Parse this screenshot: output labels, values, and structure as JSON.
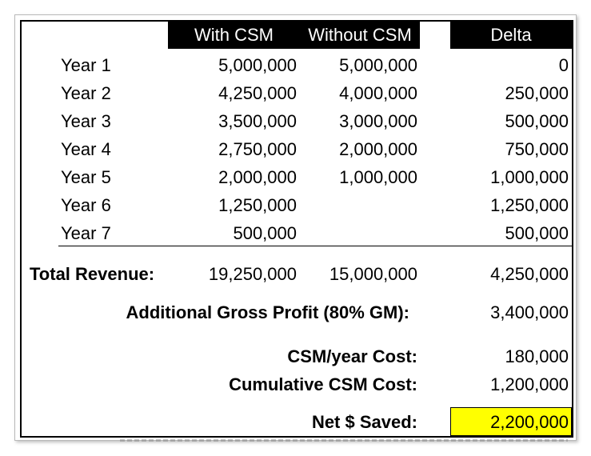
{
  "headers": {
    "with_csm": "With CSM",
    "without_csm": "Without CSM",
    "delta": "Delta"
  },
  "rows": [
    {
      "year": "Year 1",
      "with": "5,000,000",
      "without": "5,000,000",
      "delta": "0"
    },
    {
      "year": "Year 2",
      "with": "4,250,000",
      "without": "4,000,000",
      "delta": "250,000"
    },
    {
      "year": "Year 3",
      "with": "3,500,000",
      "without": "3,000,000",
      "delta": "500,000"
    },
    {
      "year": "Year 4",
      "with": "2,750,000",
      "without": "2,000,000",
      "delta": "750,000"
    },
    {
      "year": "Year 5",
      "with": "2,000,000",
      "without": "1,000,000",
      "delta": "1,000,000"
    },
    {
      "year": "Year 6",
      "with": "1,250,000",
      "without": "",
      "delta": "1,250,000"
    },
    {
      "year": "Year 7",
      "with": "500,000",
      "without": "",
      "delta": "500,000"
    }
  ],
  "total": {
    "label": "Total Revenue:",
    "with": "19,250,000",
    "without": "15,000,000",
    "delta": "4,250,000"
  },
  "summary": {
    "gross_profit_label": "Additional Gross Profit (80% GM):",
    "gross_profit_value": "3,400,000",
    "csm_year_cost_label": "CSM/year Cost:",
    "csm_year_cost_value": "180,000",
    "cumulative_cost_label": "Cumulative CSM Cost:",
    "cumulative_cost_value": "1,200,000",
    "net_saved_label": "Net $ Saved:",
    "net_saved_value": "2,200,000"
  },
  "colors": {
    "header_bg": "#000000",
    "header_text": "#ffffff",
    "highlight": "#ffff00"
  }
}
